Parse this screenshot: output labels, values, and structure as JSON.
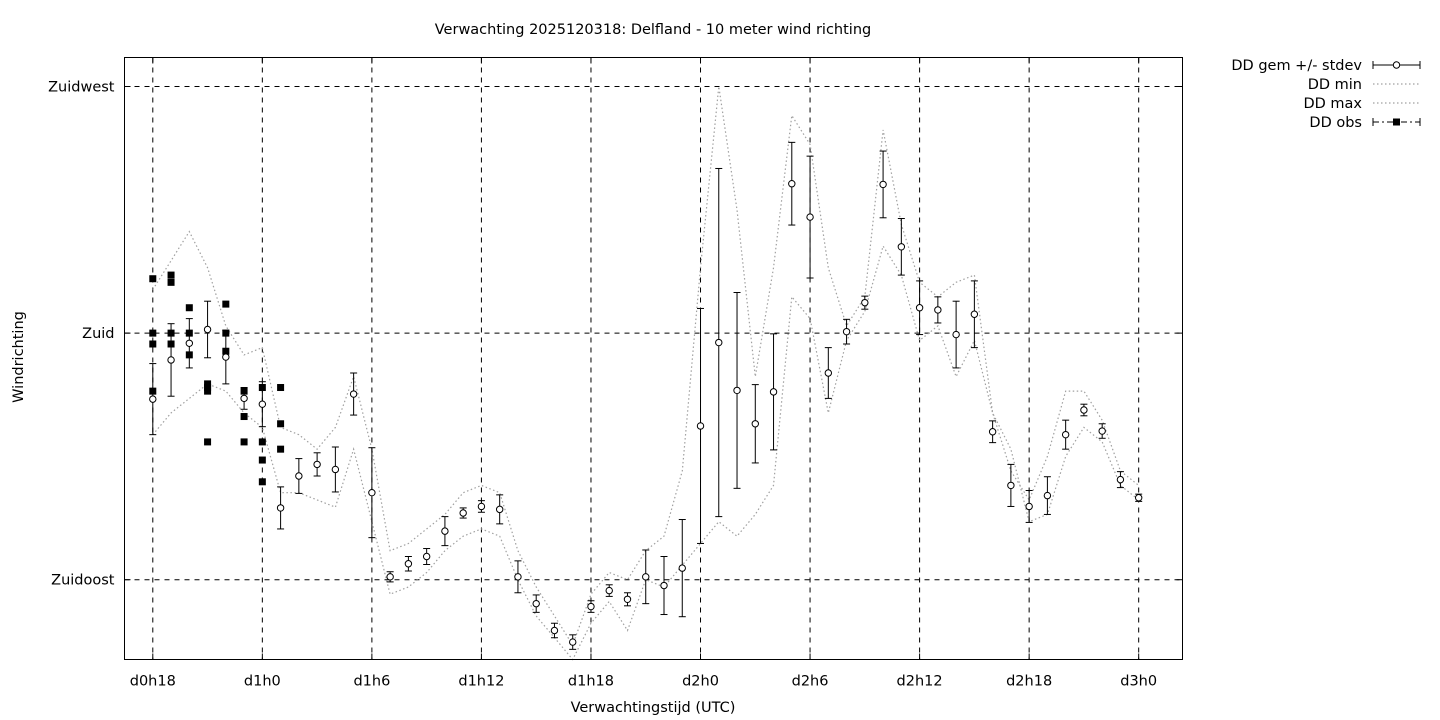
{
  "chart_data": {
    "type": "line",
    "title": "Verwachting 2025120318: Delfland - 10 meter wind richting",
    "xlabel": "Verwachtingstijd (UTC)",
    "ylabel": "Windrichting",
    "x_unit": "hours",
    "xlim": [
      -1.55,
      56.4
    ],
    "ylim": [
      146,
      229
    ],
    "x_ticks": [
      {
        "x": 0,
        "label": "d0h18"
      },
      {
        "x": 6,
        "label": "d1h0"
      },
      {
        "x": 12,
        "label": "d1h6"
      },
      {
        "x": 18,
        "label": "d1h12"
      },
      {
        "x": 24,
        "label": "d1h18"
      },
      {
        "x": 30,
        "label": "d2h0"
      },
      {
        "x": 36,
        "label": "d2h6"
      },
      {
        "x": 42,
        "label": "d2h12"
      },
      {
        "x": 48,
        "label": "d2h18"
      },
      {
        "x": 54,
        "label": "d3h0"
      }
    ],
    "y_ticks": [
      {
        "y": 225,
        "label": "Zuidwest"
      },
      {
        "y": 191,
        "label": "Zuid"
      },
      {
        "y": 157,
        "label": "Zuidoost"
      }
    ],
    "grid": true,
    "legend_position": "outside-top-right",
    "colors": {
      "axis": "#000000",
      "grid": "#000000",
      "envelope": "#a0a0a0"
    },
    "legend": [
      {
        "label": "DD gem +/- stdev",
        "style": "errorbar-open-circle"
      },
      {
        "label": "DD min",
        "style": "dotted"
      },
      {
        "label": "DD max",
        "style": "dotted"
      },
      {
        "label": "DD obs",
        "style": "dash-dot-filled-square"
      }
    ],
    "mean": {
      "name": "DD gem +/- stdev",
      "x": [
        0,
        1,
        2,
        3,
        4,
        5,
        6,
        7,
        8,
        9,
        10,
        11,
        12,
        13,
        14,
        15,
        16,
        17,
        18,
        19,
        20,
        21,
        22,
        23,
        24,
        25,
        26,
        27,
        28,
        29,
        30,
        31,
        32,
        33,
        34,
        35,
        36,
        37,
        38,
        39,
        40,
        41,
        42,
        43,
        44,
        45,
        46,
        47,
        48,
        49,
        50,
        51,
        52,
        53,
        54
      ],
      "y": [
        181.9,
        187.3,
        189.6,
        191.5,
        187.7,
        182.0,
        181.2,
        166.9,
        171.3,
        172.9,
        172.2,
        182.6,
        169.0,
        157.4,
        159.2,
        160.2,
        163.7,
        166.2,
        167.1,
        166.7,
        157.4,
        153.7,
        150.0,
        148.4,
        153.3,
        155.5,
        154.3,
        157.4,
        156.2,
        158.6,
        178.2,
        189.7,
        183.1,
        178.5,
        182.9,
        211.6,
        207.0,
        185.5,
        191.2,
        195.2,
        211.5,
        202.9,
        194.5,
        194.2,
        190.8,
        193.6,
        177.4,
        170.0,
        167.1,
        168.6,
        177.0,
        180.4,
        177.5,
        170.8,
        168.3
      ],
      "stdev": [
        4.9,
        5.0,
        3.4,
        3.9,
        3.7,
        1.5,
        3.1,
        2.9,
        2.4,
        1.6,
        3.1,
        2.9,
        6.2,
        0.7,
        1.0,
        1.1,
        2.0,
        0.7,
        0.8,
        2.0,
        2.2,
        1.2,
        1.0,
        1.0,
        0.8,
        0.8,
        0.9,
        3.7,
        4.0,
        6.7,
        16.2,
        24.0,
        13.5,
        5.4,
        8.0,
        5.7,
        8.4,
        3.5,
        1.7,
        0.9,
        4.6,
        3.9,
        3.7,
        1.8,
        4.6,
        4.6,
        1.5,
        2.9,
        2.2,
        2.6,
        2.0,
        0.8,
        1.0,
        1.1,
        0.5
      ]
    },
    "min": {
      "name": "DD min",
      "x": [
        0,
        1,
        2,
        3,
        4,
        5,
        6,
        7,
        8,
        9,
        10,
        11,
        12,
        13,
        14,
        15,
        16,
        17,
        18,
        19,
        20,
        21,
        22,
        23,
        24,
        25,
        26,
        27,
        28,
        29,
        30,
        31,
        32,
        33,
        34,
        35,
        36,
        37,
        38,
        39,
        40,
        41,
        42,
        43,
        44,
        45,
        46,
        47,
        48,
        49,
        50,
        51,
        52,
        53,
        54
      ],
      "y": [
        177,
        180,
        182,
        184,
        183,
        180,
        178,
        169,
        169,
        168,
        167,
        175,
        165,
        155,
        156,
        158,
        161,
        163,
        164,
        163,
        157,
        152,
        149,
        146,
        151,
        154,
        150,
        157,
        156,
        159,
        162,
        165,
        163,
        166,
        170,
        196,
        193,
        180,
        190,
        194,
        203,
        199,
        190,
        192,
        185,
        190,
        180,
        175,
        165,
        166,
        174,
        178,
        176,
        170,
        168
      ]
    },
    "max": {
      "name": "DD max",
      "x": [
        0,
        1,
        2,
        3,
        4,
        5,
        6,
        7,
        8,
        9,
        10,
        11,
        12,
        13,
        14,
        15,
        16,
        17,
        18,
        19,
        20,
        21,
        22,
        23,
        24,
        25,
        26,
        27,
        28,
        29,
        30,
        31,
        32,
        33,
        34,
        35,
        36,
        37,
        38,
        39,
        40,
        41,
        42,
        43,
        44,
        45,
        46,
        47,
        48,
        49,
        50,
        51,
        52,
        53,
        54
      ],
      "y": [
        197,
        201,
        205,
        200,
        192,
        188,
        189,
        178,
        177,
        175,
        178,
        185,
        175,
        161,
        162,
        164,
        166,
        169,
        170,
        169,
        161,
        156,
        152,
        148,
        155,
        158,
        157,
        161,
        163,
        172,
        200,
        225,
        208,
        185,
        200,
        221,
        217,
        200,
        192,
        196,
        219,
        206,
        198,
        196,
        198,
        199,
        180,
        172,
        168,
        174,
        183,
        183,
        179,
        172,
        170
      ]
    },
    "obs": {
      "name": "DD obs",
      "x": [
        0,
        0,
        0,
        0,
        1,
        1,
        1,
        1,
        2,
        2,
        2,
        3,
        3,
        3,
        3,
        4,
        4,
        4,
        5,
        5,
        5,
        6,
        6,
        6,
        6,
        7,
        7,
        7
      ],
      "y": [
        198.5,
        191.0,
        189.5,
        183.0,
        199.0,
        198.0,
        191.0,
        189.5,
        194.5,
        191.0,
        188.0,
        184.0,
        183.0,
        176.0,
        183.5,
        195.0,
        191.0,
        188.5,
        179.5,
        176.0,
        183.0,
        173.5,
        176.0,
        170.5,
        183.5,
        175.0,
        178.5,
        183.5
      ]
    }
  }
}
